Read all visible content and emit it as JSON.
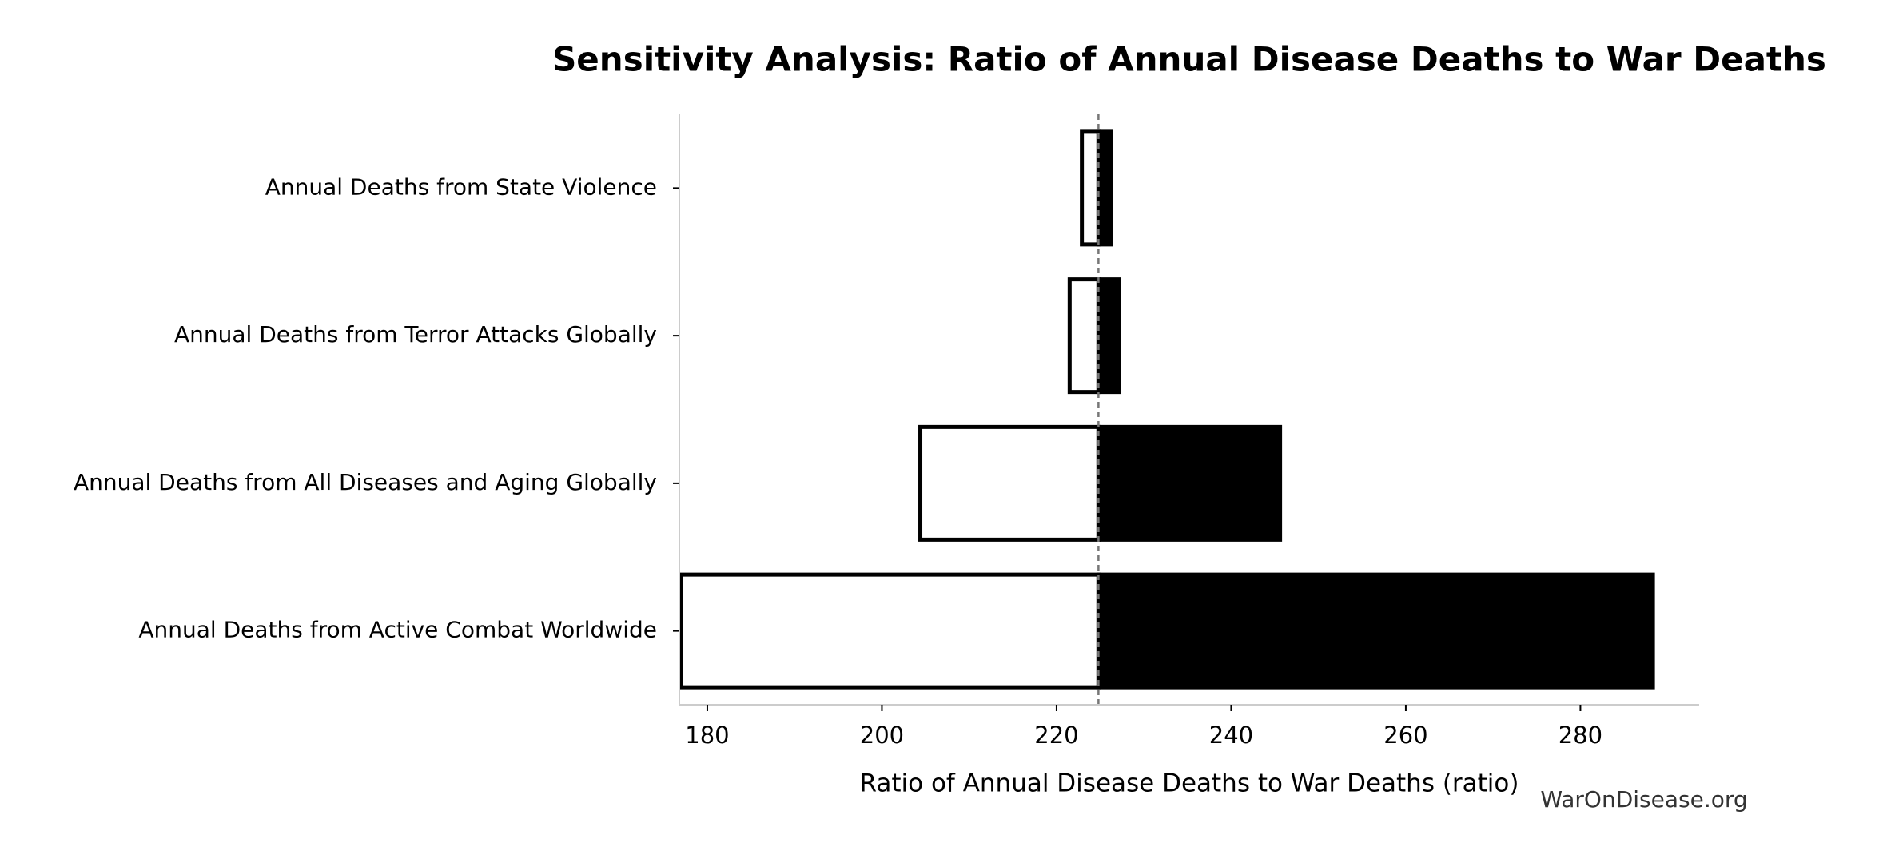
{
  "chart_data": {
    "type": "tornado",
    "title": "Sensitivity Analysis: Ratio of Annual Disease Deaths to War Deaths",
    "x_label": "Ratio of Annual Disease Deaths to War Deaths (ratio)",
    "watermark": "WarOnDisease.org",
    "categories": [
      "Annual Deaths from State Violence",
      "Annual Deaths from Terror Attacks Globally",
      "Annual Deaths from All Diseases and Aging Globally",
      "Annual Deaths from Active Combat Worldwide"
    ],
    "baseline": 224.8,
    "series": [
      {
        "color": "#ffffff",
        "edgecolor": "#000000",
        "values": [
          222.9,
          221.5,
          204.4,
          177.0
        ]
      },
      {
        "color": "#000000",
        "edgecolor": "#000000",
        "values": [
          226.2,
          227.1,
          245.6,
          288.3
        ]
      }
    ],
    "xlim": [
      176.8,
      293.6
    ],
    "xticks": [
      180,
      200,
      220,
      240,
      260,
      280
    ]
  }
}
